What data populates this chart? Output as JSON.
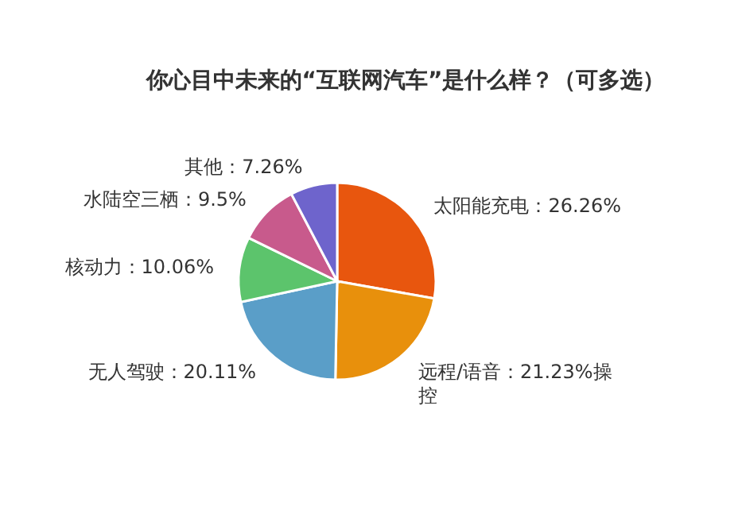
{
  "chart_data": {
    "type": "pie",
    "title": "你心目中未来的“互联网汽车”是什么样？（可多选）",
    "categories": [
      "太阳能充电：26.26%",
      "远程/语音：21.23%操控",
      "无人驾驶：20.11%",
      "核动力：10.06%",
      "水陆空三栖：9.5%",
      "其他：7.26%"
    ],
    "values": [
      26.26,
      21.23,
      20.11,
      10.06,
      9.5,
      7.26
    ],
    "colors": [
      "#e8560e",
      "#e8900c",
      "#5a9ec8",
      "#5cc46c",
      "#c85a8c",
      "#6e64cc"
    ]
  }
}
